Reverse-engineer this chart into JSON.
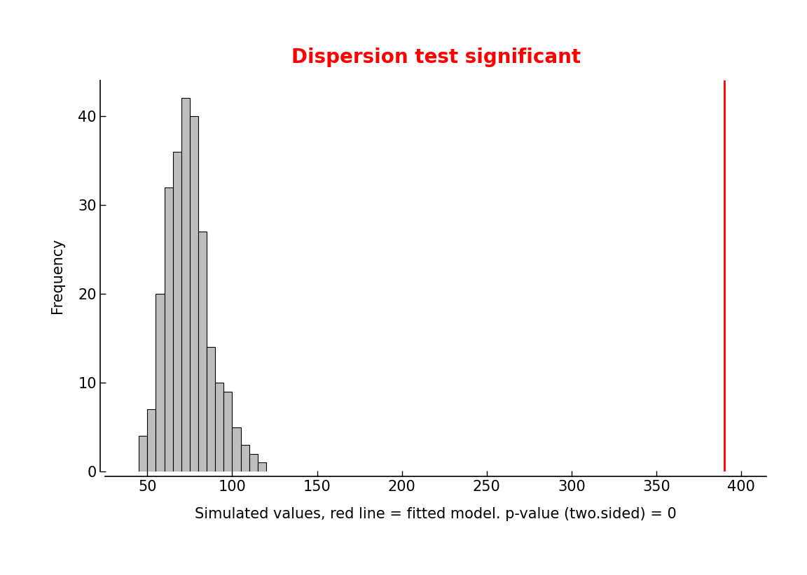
{
  "title": "Dispersion test significant",
  "title_color": "#FF0000",
  "xlabel": "Simulated values, red line = fitted model. p-value (two.sided) = 0",
  "ylabel": "Frequency",
  "xlim": [
    25,
    415
  ],
  "ylim": [
    0,
    44
  ],
  "yticks": [
    0,
    10,
    20,
    30,
    40
  ],
  "xticks": [
    50,
    100,
    150,
    200,
    250,
    300,
    350,
    400
  ],
  "vline_x": 390,
  "vline_color": "#FF0000",
  "bar_color": "#BEBEBE",
  "bar_edge_color": "#000000",
  "hist_bin_edges": [
    45,
    50,
    55,
    60,
    65,
    70,
    75,
    80,
    85,
    90,
    95,
    100,
    105,
    110,
    115,
    120
  ],
  "hist_counts": [
    4,
    7,
    20,
    32,
    36,
    42,
    40,
    27,
    14,
    10,
    9,
    5,
    3,
    2,
    1
  ],
  "background_color": "#FFFFFF",
  "title_fontsize": 20,
  "axis_fontsize": 15,
  "tick_fontsize": 15
}
